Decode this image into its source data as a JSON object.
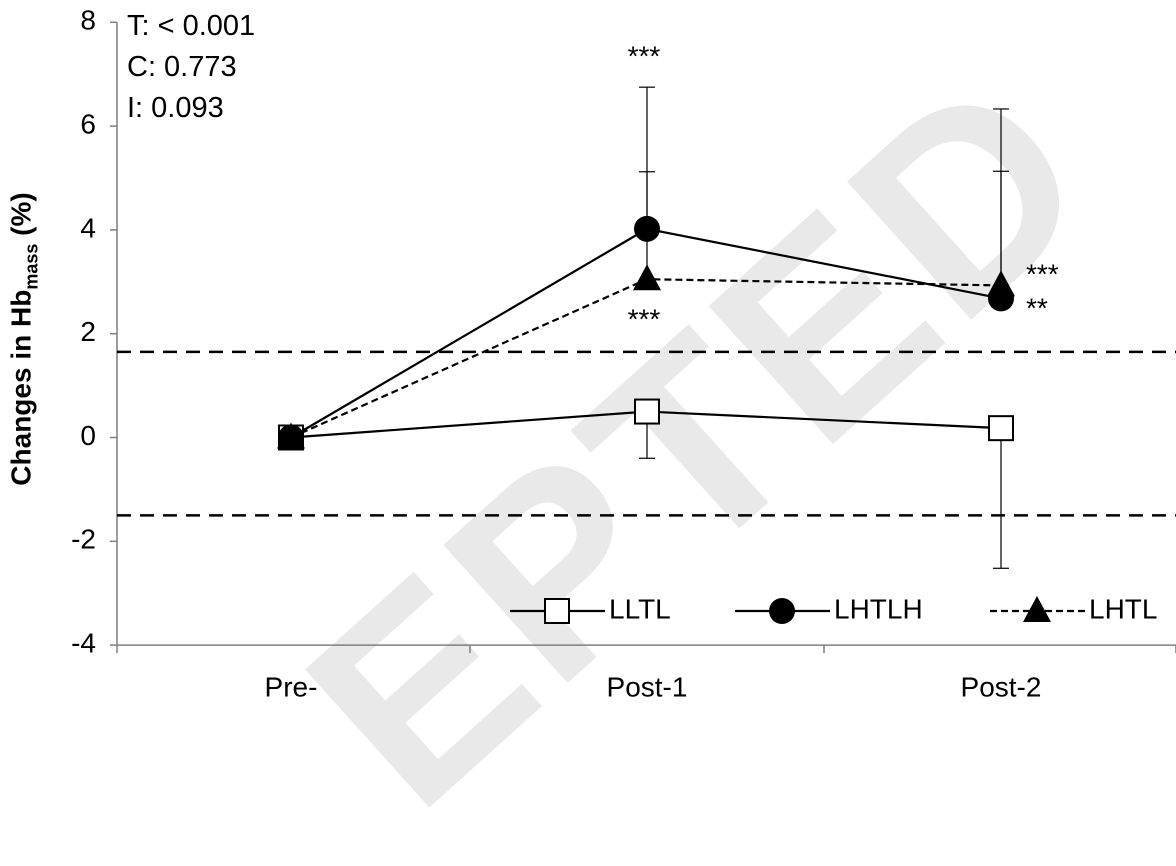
{
  "chart_data": {
    "type": "line",
    "categories": [
      "Pre-",
      "Post-1",
      "Post-2"
    ],
    "ylabel_main": "Changes in Hb",
    "ylabel_sub": "mass",
    "ylabel_unit": " (%)",
    "ylim": [
      -4,
      8
    ],
    "yticks": [
      -4,
      -2,
      0,
      2,
      4,
      6,
      8
    ],
    "grid": false,
    "legend_position": "bottom-right",
    "stats_text": [
      "T: < 0.001",
      "C: 0.773",
      "I: 0.093"
    ],
    "reference_lines": [
      1.65,
      -1.5
    ],
    "series": [
      {
        "name": "LLTL",
        "marker": "open-square",
        "line": "solid",
        "values": [
          0,
          0.5,
          0.18
        ],
        "error_plus": [
          0,
          0,
          0
        ],
        "error_minus": [
          0,
          0.9,
          2.7
        ],
        "annotations": [
          "",
          "",
          ""
        ]
      },
      {
        "name": "LHTLH",
        "marker": "filled-circle",
        "line": "solid",
        "values": [
          0,
          4.02,
          2.68
        ],
        "error_plus": [
          0,
          2.73,
          3.65
        ],
        "error_minus": [
          0,
          0,
          0
        ],
        "annotations": [
          "",
          "***",
          "**"
        ]
      },
      {
        "name": "LHTL",
        "marker": "filled-triangle",
        "line": "dashed",
        "values": [
          0,
          3.05,
          2.93
        ],
        "error_plus": [
          0,
          2.07,
          2.2
        ],
        "error_minus": [
          0,
          0,
          0
        ],
        "annotations": [
          "",
          "***",
          "***"
        ]
      }
    ],
    "colors": {
      "ink": "#000000",
      "marker_fill_open": "#ffffff",
      "watermark": "#e9e9e9"
    }
  },
  "watermark_text": "EPTED"
}
